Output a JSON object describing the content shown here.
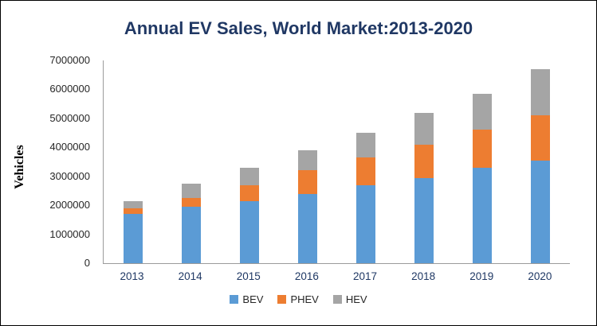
{
  "chart": {
    "title": "Annual EV Sales, World Market:2013-2020",
    "ylabel": "Vehicles"
  },
  "chart_data": {
    "type": "bar",
    "stacked": true,
    "title": "Annual EV Sales, World Market:2013-2020",
    "xlabel": "",
    "ylabel": "Vehicles",
    "categories": [
      "2013",
      "2014",
      "2015",
      "2016",
      "2017",
      "2018",
      "2019",
      "2020"
    ],
    "series": [
      {
        "name": "BEV",
        "color": "#5B9BD5",
        "values": [
          1700000,
          1950000,
          2150000,
          2400000,
          2700000,
          2950000,
          3300000,
          3550000
        ]
      },
      {
        "name": "PHEV",
        "color": "#ED7D31",
        "values": [
          200000,
          300000,
          550000,
          800000,
          950000,
          1150000,
          1300000,
          1550000
        ]
      },
      {
        "name": "HEV",
        "color": "#A5A5A5",
        "values": [
          250000,
          500000,
          600000,
          700000,
          850000,
          1100000,
          1250000,
          1600000
        ]
      }
    ],
    "totals": [
      2150000,
      2750000,
      3300000,
      3900000,
      4500000,
      5200000,
      5850000,
      6700000
    ],
    "ylim": [
      0,
      7000000
    ],
    "ytick_step": 1000000,
    "grid": false,
    "legend_position": "bottom"
  }
}
